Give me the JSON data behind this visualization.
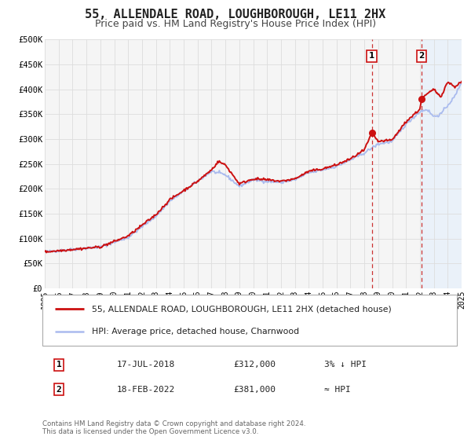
{
  "title": "55, ALLENDALE ROAD, LOUGHBOROUGH, LE11 2HX",
  "subtitle": "Price paid vs. HM Land Registry's House Price Index (HPI)",
  "title_fontsize": 11,
  "subtitle_fontsize": 9,
  "background_color": "#ffffff",
  "plot_bg_color": "#f5f5f5",
  "grid_color": "#dddddd",
  "hpi_line_color": "#aabbee",
  "price_line_color": "#cc1111",
  "marker_color": "#cc1111",
  "marker1_x": 2018.54,
  "marker1_y": 312000,
  "marker2_x": 2022.12,
  "marker2_y": 381000,
  "vline1_x": 2018.54,
  "vline2_x": 2022.12,
  "vline_color": "#cc3333",
  "shade_color": "#ddeeff",
  "shade_alpha": 0.45,
  "ylim": [
    0,
    500000
  ],
  "xlim": [
    1995,
    2025
  ],
  "yticks": [
    0,
    50000,
    100000,
    150000,
    200000,
    250000,
    300000,
    350000,
    400000,
    450000,
    500000
  ],
  "ytick_labels": [
    "£0",
    "£50K",
    "£100K",
    "£150K",
    "£200K",
    "£250K",
    "£300K",
    "£350K",
    "£400K",
    "£450K",
    "£500K"
  ],
  "xticks": [
    1995,
    1996,
    1997,
    1998,
    1999,
    2000,
    2001,
    2002,
    2003,
    2004,
    2005,
    2006,
    2007,
    2008,
    2009,
    2010,
    2011,
    2012,
    2013,
    2014,
    2015,
    2016,
    2017,
    2018,
    2019,
    2020,
    2021,
    2022,
    2023,
    2024,
    2025
  ],
  "legend_label_price": "55, ALLENDALE ROAD, LOUGHBOROUGH, LE11 2HX (detached house)",
  "legend_label_hpi": "HPI: Average price, detached house, Charnwood",
  "note1_num": "1",
  "note1_date": "17-JUL-2018",
  "note1_price": "£312,000",
  "note1_note": "3% ↓ HPI",
  "note2_num": "2",
  "note2_date": "18-FEB-2022",
  "note2_price": "£381,000",
  "note2_note": "≈ HPI",
  "footer": "Contains HM Land Registry data © Crown copyright and database right 2024.\nThis data is licensed under the Open Government Licence v3.0."
}
